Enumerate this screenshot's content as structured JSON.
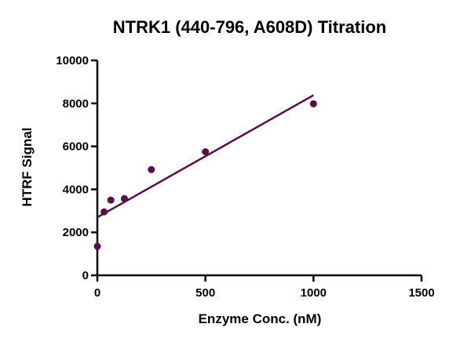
{
  "chart_data": {
    "type": "scatter",
    "title": "NTRK1 (440-796, A608D) Titration",
    "xlabel": "Enzyme Conc. (nM)",
    "ylabel": "HTRF Signal",
    "xlim": [
      0,
      1500
    ],
    "ylim": [
      0,
      10000
    ],
    "xticks": [
      0,
      500,
      1000,
      1500
    ],
    "yticks": [
      0,
      2000,
      4000,
      6000,
      8000,
      10000
    ],
    "grid": false,
    "legend": "none",
    "colors": {
      "series": "#5a0f4b",
      "axis": "#000000"
    },
    "series": [
      {
        "points": [
          {
            "x": 0,
            "y": 1350
          },
          {
            "x": 31.25,
            "y": 2950
          },
          {
            "x": 62.5,
            "y": 3500
          },
          {
            "x": 125,
            "y": 3570
          },
          {
            "x": 250,
            "y": 4920
          },
          {
            "x": 500,
            "y": 5750
          },
          {
            "x": 1000,
            "y": 7980
          }
        ],
        "fit": {
          "type": "linear",
          "x_range": [
            0,
            1000
          ],
          "y_start": 2700,
          "y_end": 8380
        }
      }
    ]
  }
}
